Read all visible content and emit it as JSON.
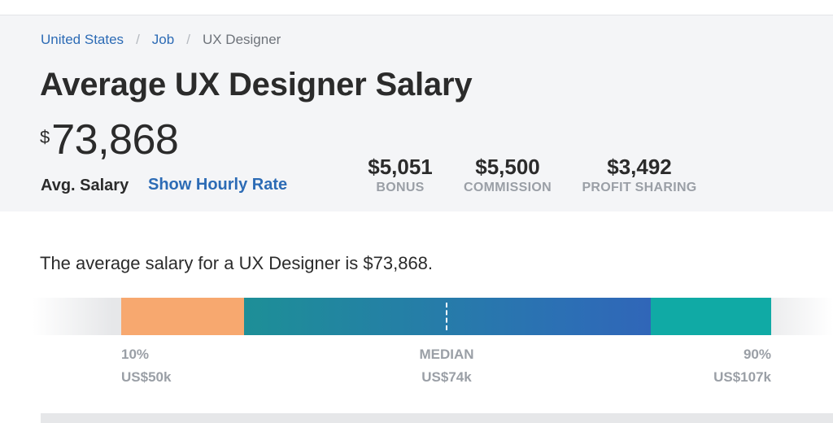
{
  "breadcrumb": {
    "items": [
      {
        "label": "United States"
      },
      {
        "label": "Job"
      },
      {
        "label": "UX Designer"
      }
    ],
    "separator": "/"
  },
  "header": {
    "title": "Average UX Designer Salary",
    "salary_currency": "$",
    "salary_value": "73,868",
    "avg_label": "Avg. Salary",
    "hourly_link": "Show Hourly Rate"
  },
  "compensation": [
    {
      "value": "$5,051",
      "label": "BONUS"
    },
    {
      "value": "$5,500",
      "label": "COMMISSION"
    },
    {
      "value": "$3,492",
      "label": "PROFIT SHARING"
    }
  ],
  "summary": "The average salary for a UX Designer is $73,868.",
  "distribution": {
    "low": {
      "label": "10%",
      "value": "US$50k"
    },
    "median": {
      "label": "MEDIAN",
      "value": "US$74k"
    },
    "high": {
      "label": "90%",
      "value": "US$107k"
    }
  },
  "colors": {
    "accent_link": "#2c6bb5",
    "low_segment": "#f7a86f",
    "mid_segment_start": "#1d8f97",
    "mid_segment_end": "#3066b8",
    "high_segment": "#10aaa5"
  }
}
